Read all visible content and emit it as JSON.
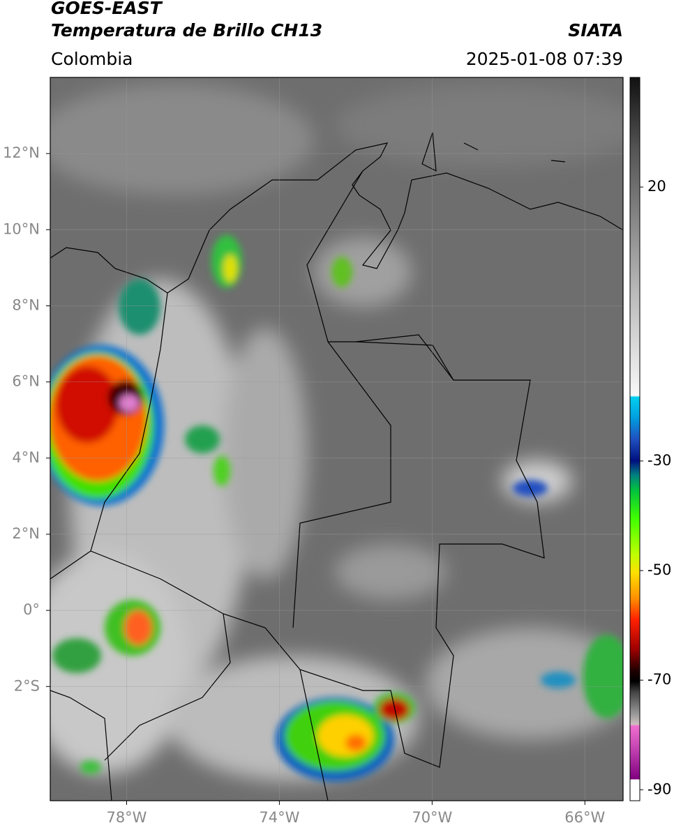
{
  "header": {
    "title": "GOES-EAST",
    "subtitle": "Temperatura de Brillo CH13",
    "region": "Colombia",
    "source": "SIATA",
    "datetime": "2025-01-08 07:39"
  },
  "map": {
    "lon_lim": [
      -80,
      -65
    ],
    "lat_lim": [
      -5,
      14
    ],
    "lat_ticks": [
      {
        "value": 12,
        "label": "12°N"
      },
      {
        "value": 10,
        "label": "10°N"
      },
      {
        "value": 8,
        "label": "8°N"
      },
      {
        "value": 6,
        "label": "6°N"
      },
      {
        "value": 4,
        "label": "4°N"
      },
      {
        "value": 2,
        "label": "2°N"
      },
      {
        "value": 0,
        "label": "0°"
      },
      {
        "value": -2,
        "label": "2°S"
      }
    ],
    "lon_ticks": [
      {
        "value": -78,
        "label": "78°W"
      },
      {
        "value": -74,
        "label": "74°W"
      },
      {
        "value": -70,
        "label": "70°W"
      },
      {
        "value": -66,
        "label": "66°W"
      }
    ]
  },
  "colorbar": {
    "lim": [
      -92,
      40
    ],
    "ticks": [
      20,
      -30,
      -50,
      -70,
      -90
    ]
  }
}
